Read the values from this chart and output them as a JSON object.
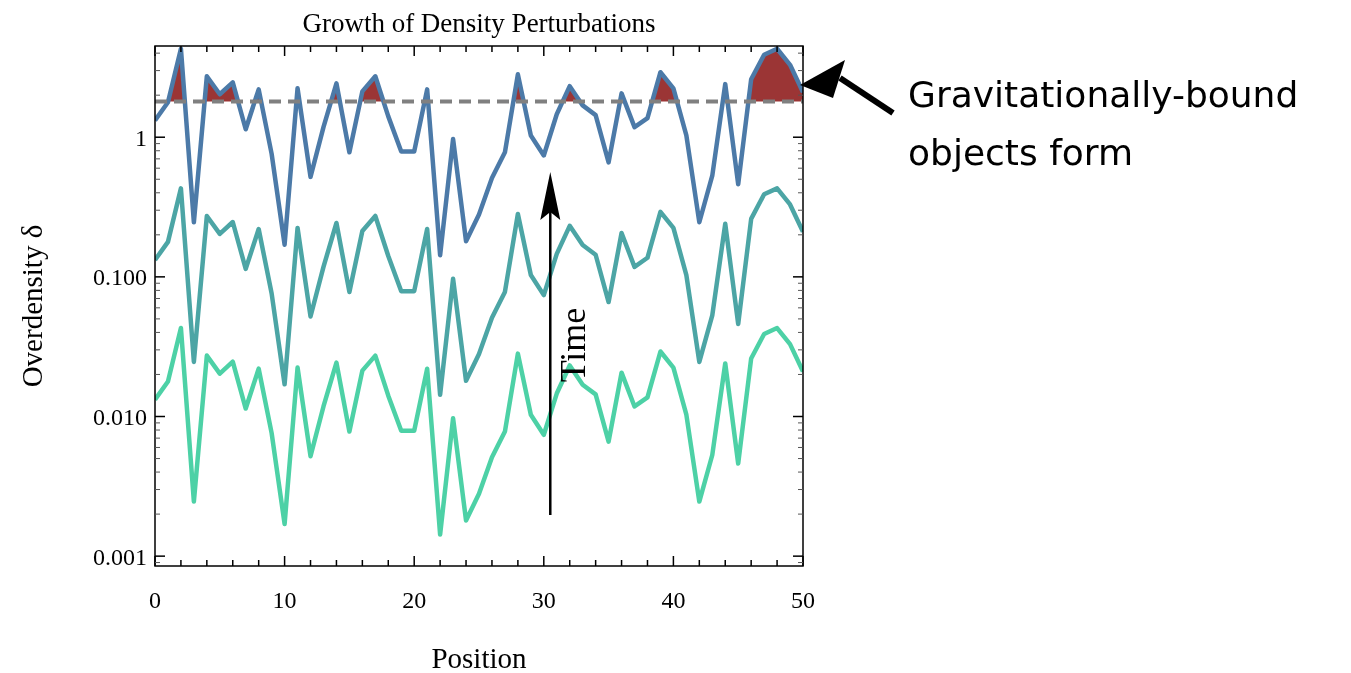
{
  "chart_data": {
    "type": "line",
    "title": "Growth of Density Perturbations",
    "xlabel": "Position",
    "ylabel": "Overdensity δ",
    "log": "y",
    "x": [
      0,
      1,
      2,
      3,
      4,
      5,
      6,
      7,
      8,
      9,
      10,
      11,
      12,
      13,
      14,
      15,
      16,
      17,
      18,
      19,
      20,
      21,
      22,
      23,
      24,
      25,
      26,
      27,
      28,
      29,
      30,
      31,
      32,
      33,
      34,
      35,
      36,
      37,
      38,
      39,
      40,
      41,
      42,
      43,
      44,
      45,
      46,
      47,
      48,
      49,
      50
    ],
    "xlim": [
      0,
      50
    ],
    "xticks": [
      0,
      {
        "value": 2,
        "label": null
      },
      {
        "value": 4,
        "label": null
      },
      {
        "value": 6,
        "label": null
      },
      {
        "value": 8,
        "label": null
      },
      10,
      {
        "value": 12,
        "label": null
      },
      {
        "value": 14,
        "label": null
      },
      {
        "value": 16,
        "label": null
      },
      {
        "value": 18,
        "label": null
      },
      20,
      {
        "value": 22,
        "label": null
      },
      {
        "value": 24,
        "label": null
      },
      {
        "value": 26,
        "label": null
      },
      {
        "value": 28,
        "label": null
      },
      30,
      {
        "value": 32,
        "label": null
      },
      {
        "value": 34,
        "label": null
      },
      {
        "value": 36,
        "label": null
      },
      {
        "value": 38,
        "label": null
      },
      40,
      {
        "value": 42,
        "label": null
      },
      {
        "value": 44,
        "label": null
      },
      {
        "value": 46,
        "label": null
      },
      {
        "value": 48,
        "label": null
      },
      50
    ],
    "ylim": [
      0.00085,
      4.5
    ],
    "yticks": [
      {
        "value": 0.001,
        "label": "0.001"
      },
      {
        "value": 0.01,
        "label": "0.010"
      },
      {
        "value": 0.1,
        "label": "0.100"
      },
      {
        "value": 1,
        "label": "1"
      }
    ],
    "series": [
      {
        "type": "area",
        "color": "#9b3535",
        "x": [
          1,
          2,
          2.3
        ],
        "values": [
          1.8,
          4.3,
          1.8
        ]
      },
      {
        "type": "area",
        "color": "#9b3535",
        "x": [
          3.83,
          4,
          5,
          6,
          6.41
        ],
        "values": [
          1.8,
          2.73,
          2.03,
          2.47,
          1.8
        ]
      },
      {
        "type": "area",
        "color": "#9b3535",
        "x": [
          7.7,
          8,
          8.19
        ],
        "values": [
          1.8,
          2.2,
          1.8
        ]
      },
      {
        "type": "area",
        "color": "#9b3535",
        "x": [
          13.58,
          14,
          14.26
        ],
        "values": [
          1.8,
          2.43,
          1.8
        ]
      },
      {
        "type": "area",
        "color": "#9b3535",
        "x": [
          15.83,
          16,
          17,
          17.63
        ],
        "values": [
          1.8,
          2.13,
          2.73,
          1.8
        ]
      },
      {
        "type": "area",
        "color": "#9b3535",
        "x": [
          27.65,
          28,
          28.45
        ],
        "values": [
          1.8,
          2.82,
          1.8
        ]
      },
      {
        "type": "area",
        "color": "#9b3535",
        "x": [
          31.45,
          32,
          32.8
        ],
        "values": [
          1.8,
          2.32,
          1.8
        ]
      },
      {
        "type": "area",
        "color": "#9b3535",
        "x": [
          38.36,
          39,
          40,
          40.28
        ],
        "values": [
          1.8,
          2.92,
          2.24,
          1.8
        ]
      },
      {
        "type": "area",
        "color": "#9b3535",
        "x": [
          45.79,
          46,
          47,
          48,
          49,
          50
        ],
        "values": [
          1.8,
          2.6,
          3.9,
          4.3,
          3.3,
          2.1
        ]
      },
      {
        "color": "#4c7aa8",
        "values": [
          1.32,
          1.78,
          4.3,
          0.246,
          2.73,
          2.03,
          2.47,
          1.14,
          2.2,
          0.76,
          0.17,
          2.24,
          0.52,
          1.18,
          2.43,
          0.78,
          2.13,
          2.73,
          1.41,
          0.79,
          0.79,
          2.2,
          0.143,
          0.97,
          0.18,
          0.28,
          0.51,
          0.78,
          2.82,
          1.03,
          0.74,
          1.46,
          2.32,
          1.69,
          1.44,
          0.66,
          2.06,
          1.18,
          1.37,
          2.92,
          2.24,
          1.03,
          0.246,
          0.53,
          2.4,
          0.46,
          2.6,
          3.9,
          4.3,
          3.3,
          2.1
        ]
      },
      {
        "color": "#4ca5a5",
        "values": [
          0.132,
          0.178,
          0.43,
          0.0246,
          0.273,
          0.203,
          0.247,
          0.114,
          0.22,
          0.076,
          0.017,
          0.224,
          0.052,
          0.118,
          0.243,
          0.078,
          0.213,
          0.273,
          0.141,
          0.079,
          0.079,
          0.22,
          0.0143,
          0.097,
          0.018,
          0.028,
          0.051,
          0.078,
          0.282,
          0.103,
          0.074,
          0.146,
          0.232,
          0.169,
          0.144,
          0.066,
          0.206,
          0.118,
          0.137,
          0.292,
          0.224,
          0.103,
          0.0246,
          0.053,
          0.24,
          0.046,
          0.26,
          0.39,
          0.43,
          0.33,
          0.21
        ]
      },
      {
        "color": "#4dd1a6",
        "values": [
          0.0132,
          0.0178,
          0.043,
          0.00246,
          0.0273,
          0.0203,
          0.0247,
          0.0114,
          0.022,
          0.0076,
          0.0017,
          0.0224,
          0.0052,
          0.0118,
          0.0243,
          0.0078,
          0.0213,
          0.0273,
          0.0141,
          0.0079,
          0.0079,
          0.022,
          0.00143,
          0.0097,
          0.0018,
          0.0028,
          0.0051,
          0.0078,
          0.0282,
          0.0103,
          0.0074,
          0.0146,
          0.0232,
          0.0169,
          0.0144,
          0.0066,
          0.0206,
          0.0118,
          0.0137,
          0.0292,
          0.0224,
          0.0103,
          0.00246,
          0.0053,
          0.024,
          0.0046,
          0.026,
          0.039,
          0.043,
          0.033,
          0.021
        ]
      }
    ],
    "ref_lines": [
      {
        "axis": "y",
        "value": 1.8,
        "color": "#808080",
        "line_style": "dashed"
      }
    ],
    "annotations": [
      "Gravitationally-bound objects form",
      "Time"
    ]
  }
}
